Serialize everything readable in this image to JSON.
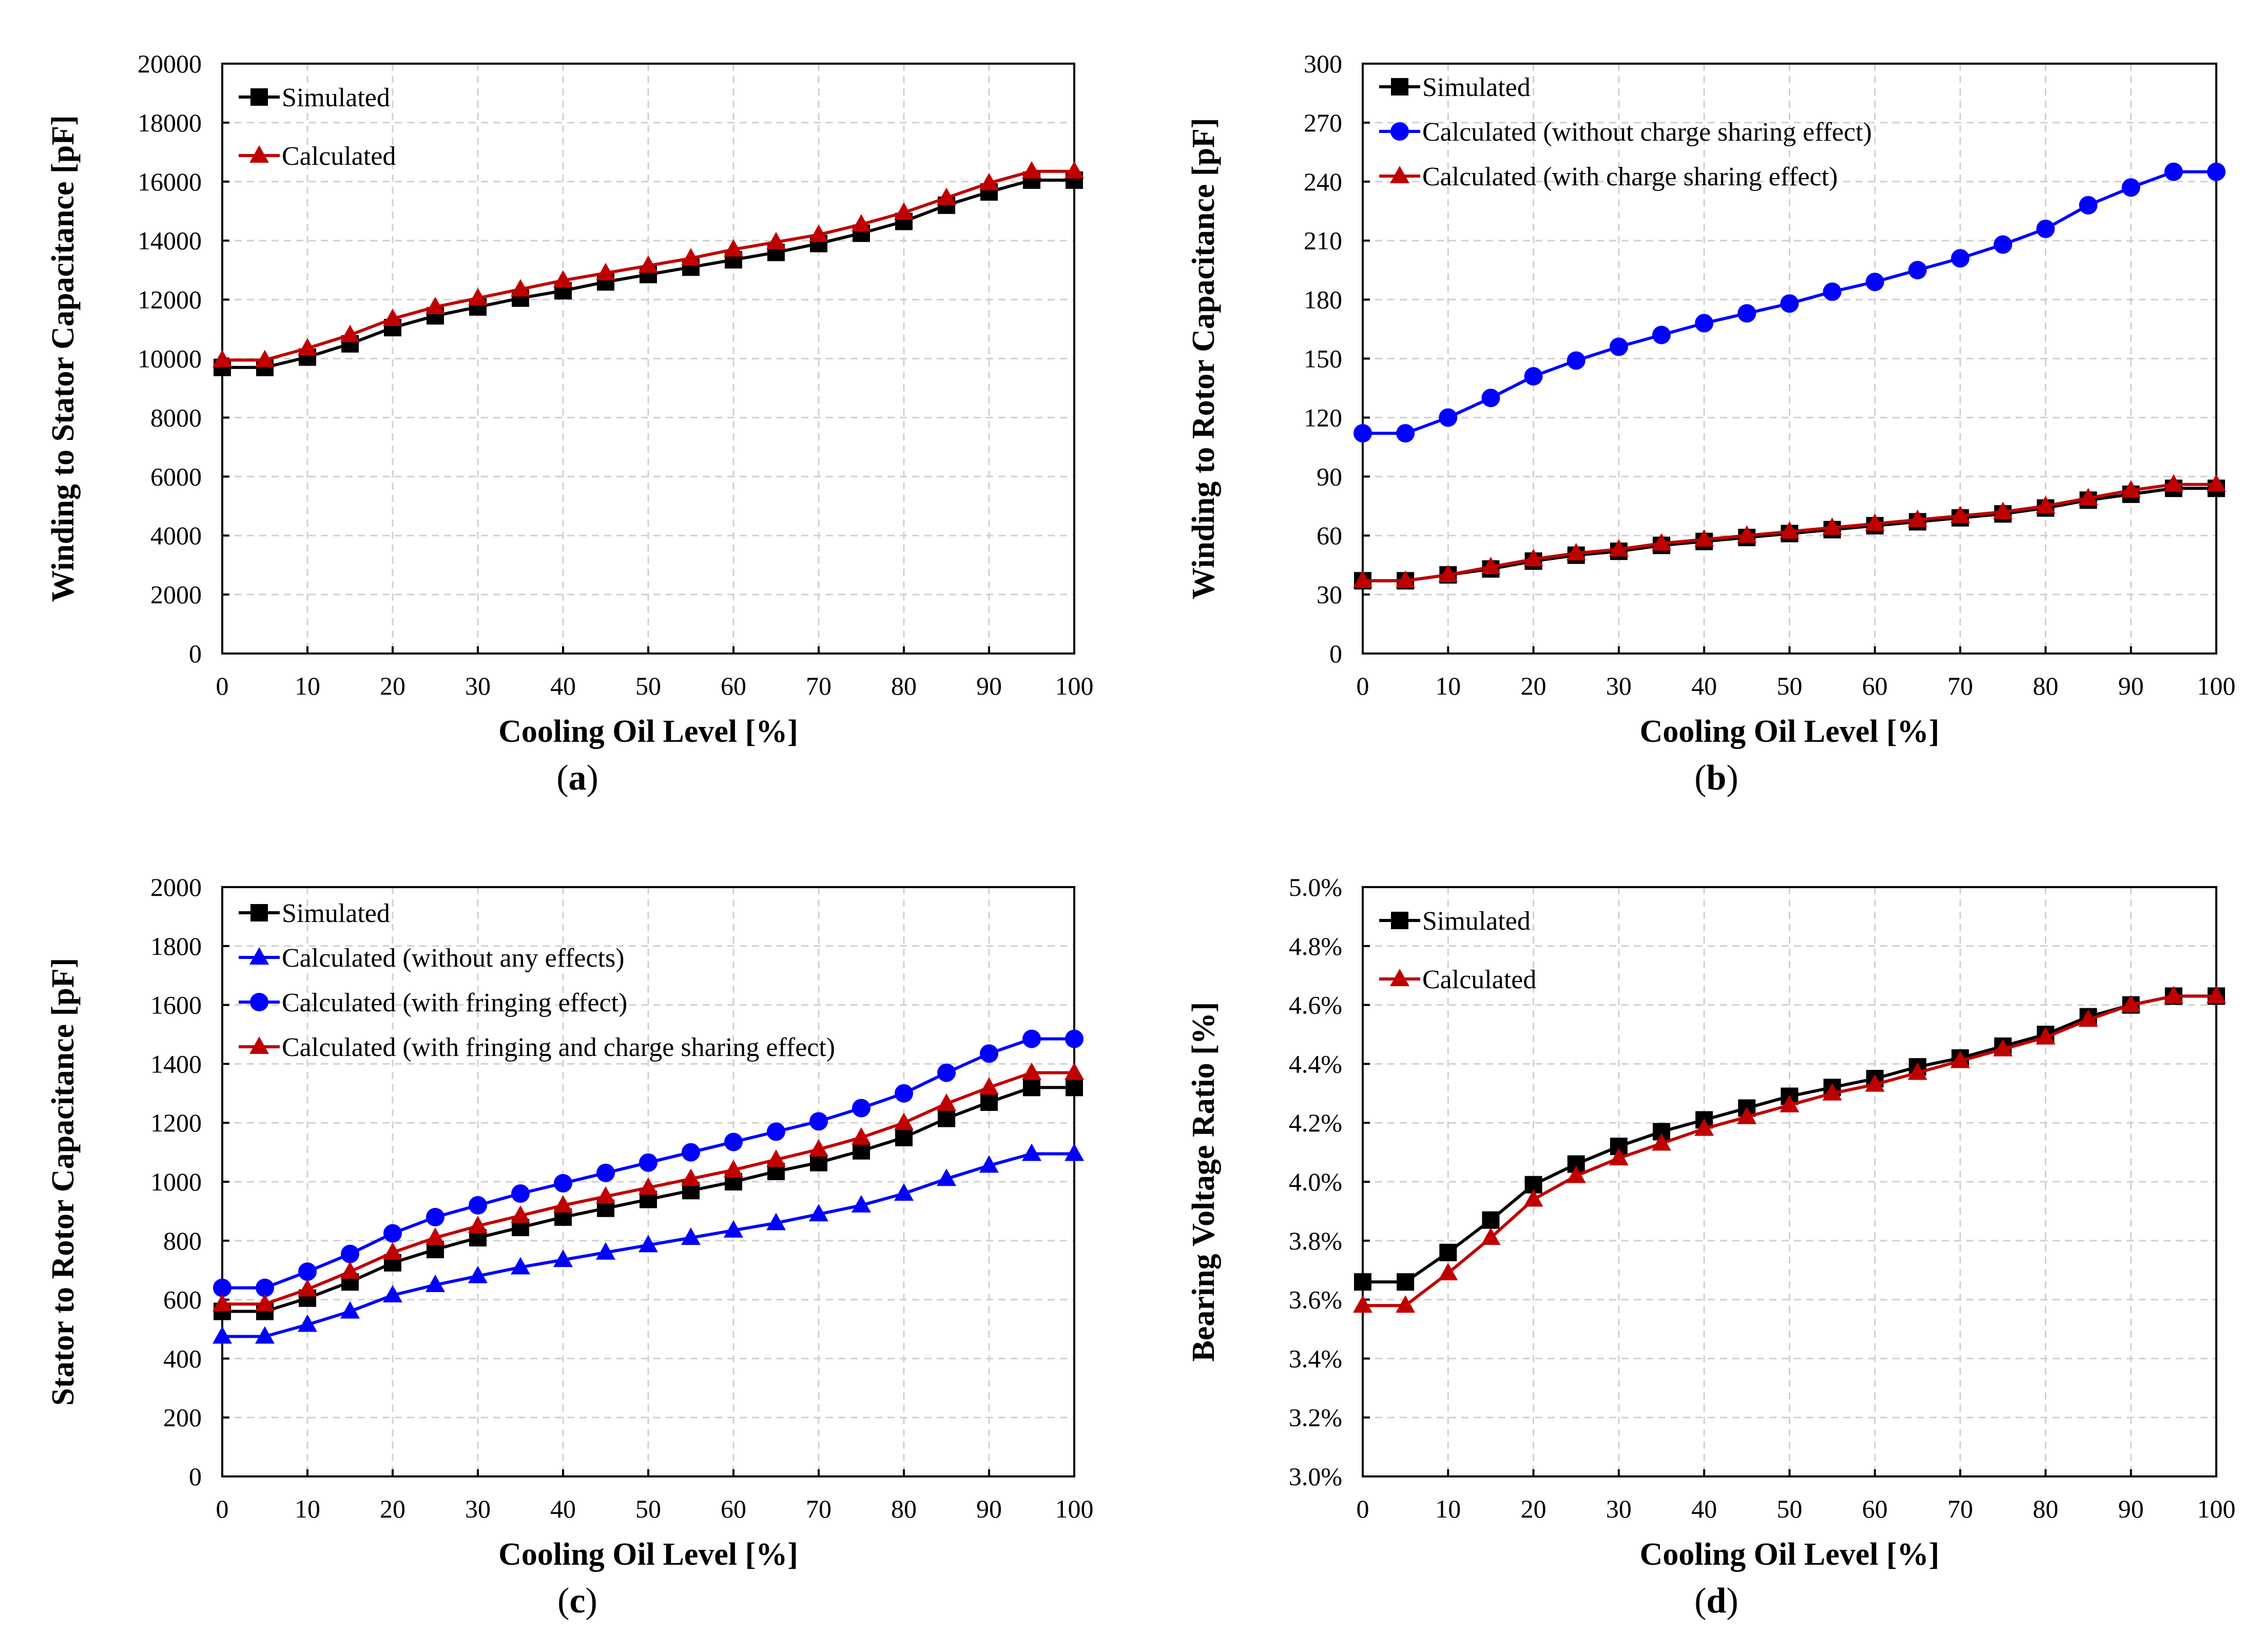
{
  "chart_data": [
    {
      "id": "a",
      "type": "line",
      "panel_label": "a",
      "xlabel": "Cooling Oil Level [%]",
      "ylabel": "Winding to Stator Capacitance [pF]",
      "xlim": [
        0,
        100
      ],
      "ylim": [
        0,
        20000
      ],
      "y_ticks": [
        0,
        2000,
        4000,
        6000,
        8000,
        10000,
        12000,
        14000,
        16000,
        18000,
        20000
      ],
      "y_tick_labels": [
        "0",
        "2000",
        "4000",
        "6000",
        "8000",
        "10000",
        "12000",
        "14000",
        "16000",
        "18000",
        "20000"
      ],
      "x_ticks": [
        0,
        10,
        20,
        30,
        40,
        50,
        60,
        70,
        80,
        90,
        100
      ],
      "x_tick_labels": [
        "0",
        "10",
        "20",
        "30",
        "40",
        "50",
        "60",
        "70",
        "80",
        "90",
        "100"
      ],
      "grid": true,
      "legend_position": "top-left",
      "x": [
        0,
        5,
        10,
        15,
        20,
        25,
        30,
        35,
        40,
        45,
        50,
        55,
        60,
        65,
        70,
        75,
        80,
        85,
        90,
        95,
        100
      ],
      "series": [
        {
          "name": "Simulated",
          "color": "#000000",
          "marker": "square",
          "values": [
            9700,
            9700,
            10050,
            10500,
            11050,
            11450,
            11750,
            12050,
            12300,
            12600,
            12850,
            13100,
            13350,
            13600,
            13900,
            14250,
            14650,
            15200,
            15650,
            16050,
            16050
          ]
        },
        {
          "name": "Calculated",
          "color": "#c00000",
          "marker": "triangle",
          "values": [
            9950,
            9950,
            10350,
            10800,
            11350,
            11750,
            12050,
            12350,
            12650,
            12900,
            13150,
            13400,
            13700,
            13950,
            14200,
            14550,
            14950,
            15450,
            15950,
            16350,
            16350
          ]
        }
      ]
    },
    {
      "id": "b",
      "type": "line",
      "panel_label": "b",
      "xlabel": "Cooling Oil Level [%]",
      "ylabel": "Winding to Rotor Capacitance  [pF]",
      "xlim": [
        0,
        100
      ],
      "ylim": [
        0,
        300
      ],
      "y_ticks": [
        0,
        30,
        60,
        90,
        120,
        150,
        180,
        210,
        240,
        270,
        300
      ],
      "y_tick_labels": [
        "0",
        "30",
        "60",
        "90",
        "120",
        "150",
        "180",
        "210",
        "240",
        "270",
        "300"
      ],
      "x_ticks": [
        0,
        10,
        20,
        30,
        40,
        50,
        60,
        70,
        80,
        90,
        100
      ],
      "x_tick_labels": [
        "0",
        "10",
        "20",
        "30",
        "40",
        "50",
        "60",
        "70",
        "80",
        "90",
        "100"
      ],
      "grid": true,
      "legend_position": "top-left",
      "x": [
        0,
        5,
        10,
        15,
        20,
        25,
        30,
        35,
        40,
        45,
        50,
        55,
        60,
        65,
        70,
        75,
        80,
        85,
        90,
        95,
        100
      ],
      "series": [
        {
          "name": "Simulated",
          "color": "#000000",
          "marker": "square",
          "values": [
            37,
            37,
            40,
            43,
            47,
            50,
            52,
            55,
            57,
            59,
            61,
            63,
            65,
            67,
            69,
            71,
            74,
            78,
            81,
            84,
            84
          ]
        },
        {
          "name": "Calculated (without charge sharing effect)",
          "color": "#0000ff",
          "marker": "circle",
          "values": [
            112,
            112,
            120,
            130,
            141,
            149,
            156,
            162,
            168,
            173,
            178,
            184,
            189,
            195,
            201,
            208,
            216,
            228,
            237,
            245,
            245
          ]
        },
        {
          "name": "Calculated (with charge sharing effect)",
          "color": "#c00000",
          "marker": "triangle",
          "values": [
            37,
            37,
            40,
            44,
            48,
            51,
            53,
            56,
            58,
            60,
            62,
            64,
            66,
            68,
            70,
            72,
            75,
            79,
            83,
            86,
            86
          ]
        }
      ]
    },
    {
      "id": "c",
      "type": "line",
      "panel_label": "c",
      "xlabel": "Cooling Oil Level [%]",
      "ylabel": "Stator to Rotor Capacitance  [pF]",
      "xlim": [
        0,
        100
      ],
      "ylim": [
        0,
        2000
      ],
      "y_ticks": [
        0,
        200,
        400,
        600,
        800,
        1000,
        1200,
        1400,
        1600,
        1800,
        2000
      ],
      "y_tick_labels": [
        "0",
        "200",
        "400",
        "600",
        "800",
        "1000",
        "1200",
        "1400",
        "1600",
        "1800",
        "2000"
      ],
      "x_ticks": [
        0,
        10,
        20,
        30,
        40,
        50,
        60,
        70,
        80,
        90,
        100
      ],
      "x_tick_labels": [
        "0",
        "10",
        "20",
        "30",
        "40",
        "50",
        "60",
        "70",
        "80",
        "90",
        "100"
      ],
      "grid": true,
      "legend_position": "top-left",
      "x": [
        0,
        5,
        10,
        15,
        20,
        25,
        30,
        35,
        40,
        45,
        50,
        55,
        60,
        65,
        70,
        75,
        80,
        85,
        90,
        95,
        100
      ],
      "series": [
        {
          "name": "Simulated",
          "color": "#000000",
          "marker": "square",
          "values": [
            560,
            560,
            605,
            660,
            725,
            770,
            810,
            845,
            880,
            910,
            940,
            970,
            1000,
            1035,
            1065,
            1105,
            1150,
            1215,
            1270,
            1320,
            1320
          ]
        },
        {
          "name": "Calculated (without any effects)",
          "color": "#0000ff",
          "marker": "triangle",
          "values": [
            475,
            475,
            515,
            560,
            615,
            650,
            680,
            710,
            735,
            760,
            785,
            810,
            835,
            860,
            890,
            920,
            960,
            1010,
            1055,
            1095,
            1095
          ]
        },
        {
          "name": "Calculated (with fringing effect)",
          "color": "#0000ff",
          "marker": "circle",
          "values": [
            640,
            640,
            695,
            755,
            825,
            880,
            920,
            960,
            995,
            1030,
            1065,
            1100,
            1135,
            1170,
            1205,
            1250,
            1300,
            1370,
            1435,
            1485,
            1485
          ]
        },
        {
          "name": "Calculated (with fringing and charge sharing effect)",
          "color": "#c00000",
          "marker": "triangle",
          "values": [
            585,
            585,
            635,
            695,
            760,
            810,
            850,
            885,
            920,
            950,
            980,
            1010,
            1040,
            1075,
            1110,
            1150,
            1200,
            1265,
            1320,
            1370,
            1370
          ]
        }
      ]
    },
    {
      "id": "d",
      "type": "line",
      "panel_label": "d",
      "xlabel": "Cooling Oil Level [%]",
      "ylabel": "Bearing Voltage Ratio [%]",
      "xlim": [
        0,
        100
      ],
      "ylim": [
        3.0,
        5.0
      ],
      "y_ticks": [
        3.0,
        3.2,
        3.4,
        3.6,
        3.8,
        4.0,
        4.2,
        4.4,
        4.6,
        4.8,
        5.0
      ],
      "y_tick_labels": [
        "3.0%",
        "3.2%",
        "3.4%",
        "3.6%",
        "3.8%",
        "4.0%",
        "4.2%",
        "4.4%",
        "4.6%",
        "4.8%",
        "5.0%"
      ],
      "x_ticks": [
        0,
        10,
        20,
        30,
        40,
        50,
        60,
        70,
        80,
        90,
        100
      ],
      "x_tick_labels": [
        "0",
        "10",
        "20",
        "30",
        "40",
        "50",
        "60",
        "70",
        "80",
        "90",
        "100"
      ],
      "grid": true,
      "legend_position": "top-left",
      "x": [
        0,
        5,
        10,
        15,
        20,
        25,
        30,
        35,
        40,
        45,
        50,
        55,
        60,
        65,
        70,
        75,
        80,
        85,
        90,
        95,
        100
      ],
      "series": [
        {
          "name": "Simulated",
          "color": "#000000",
          "marker": "square",
          "values": [
            3.66,
            3.66,
            3.76,
            3.87,
            3.99,
            4.06,
            4.12,
            4.17,
            4.21,
            4.25,
            4.29,
            4.32,
            4.35,
            4.39,
            4.42,
            4.46,
            4.5,
            4.56,
            4.6,
            4.63,
            4.63
          ]
        },
        {
          "name": "Calculated",
          "color": "#c00000",
          "marker": "triangle",
          "values": [
            3.58,
            3.58,
            3.69,
            3.81,
            3.94,
            4.02,
            4.08,
            4.13,
            4.18,
            4.22,
            4.26,
            4.3,
            4.33,
            4.37,
            4.41,
            4.45,
            4.49,
            4.55,
            4.6,
            4.63,
            4.63
          ]
        }
      ]
    }
  ]
}
